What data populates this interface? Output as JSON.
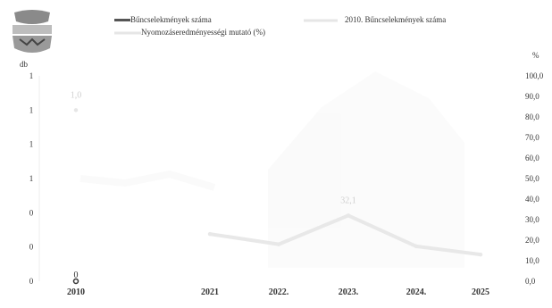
{
  "chart_data": {
    "type": "line",
    "legend": {
      "placement": "top",
      "items": [
        {
          "label": "Bűncselekmények száma",
          "color": "#555555",
          "marker": "thick-line"
        },
        {
          "label": "2010. Bűncselekmények száma",
          "color": "#e6e6e6",
          "marker": "line"
        },
        {
          "label": "Nyomozáseredményességi mutató (%)",
          "color": "#e6e6e6",
          "marker": "line"
        }
      ]
    },
    "left_axis": {
      "unit_label": "db",
      "tick_labels": [
        "0",
        "0",
        "0",
        "1",
        "1",
        "1",
        "1"
      ]
    },
    "right_axis": {
      "unit_label": "%",
      "ylim": [
        0,
        100
      ],
      "tick_labels": [
        "0,0",
        "10,0",
        "20,0",
        "30,0",
        "40,0",
        "50,0",
        "60,0",
        "70,0",
        "80,0",
        "90,0",
        "100,0"
      ]
    },
    "categories": [
      "2010",
      "2021",
      "2022.",
      "2023.",
      "2024.",
      "2025"
    ],
    "series": [
      {
        "name": "Bűncselekmények száma",
        "axis": "left",
        "color": "#555555",
        "values": [
          0,
          null,
          null,
          null,
          null,
          null
        ],
        "point_labels": [
          "0",
          "",
          "",
          "",
          "",
          ""
        ]
      },
      {
        "name": "2010. Bűncselekmények száma",
        "axis": "left",
        "color": "#e6e6e6",
        "values": [
          1,
          null,
          null,
          null,
          null,
          null
        ],
        "point_labels": [
          "1,0",
          "",
          "",
          "",
          "",
          ""
        ]
      },
      {
        "name": "Nyomozáseredményességi mutató (%)",
        "axis": "right",
        "color": "#e8e8e8",
        "values": [
          null,
          23,
          18,
          32,
          17,
          13
        ],
        "point_labels": [
          "",
          "",
          "",
          "32,1",
          "",
          ""
        ]
      }
    ]
  },
  "logo": {
    "name": "coat-of-arms"
  }
}
